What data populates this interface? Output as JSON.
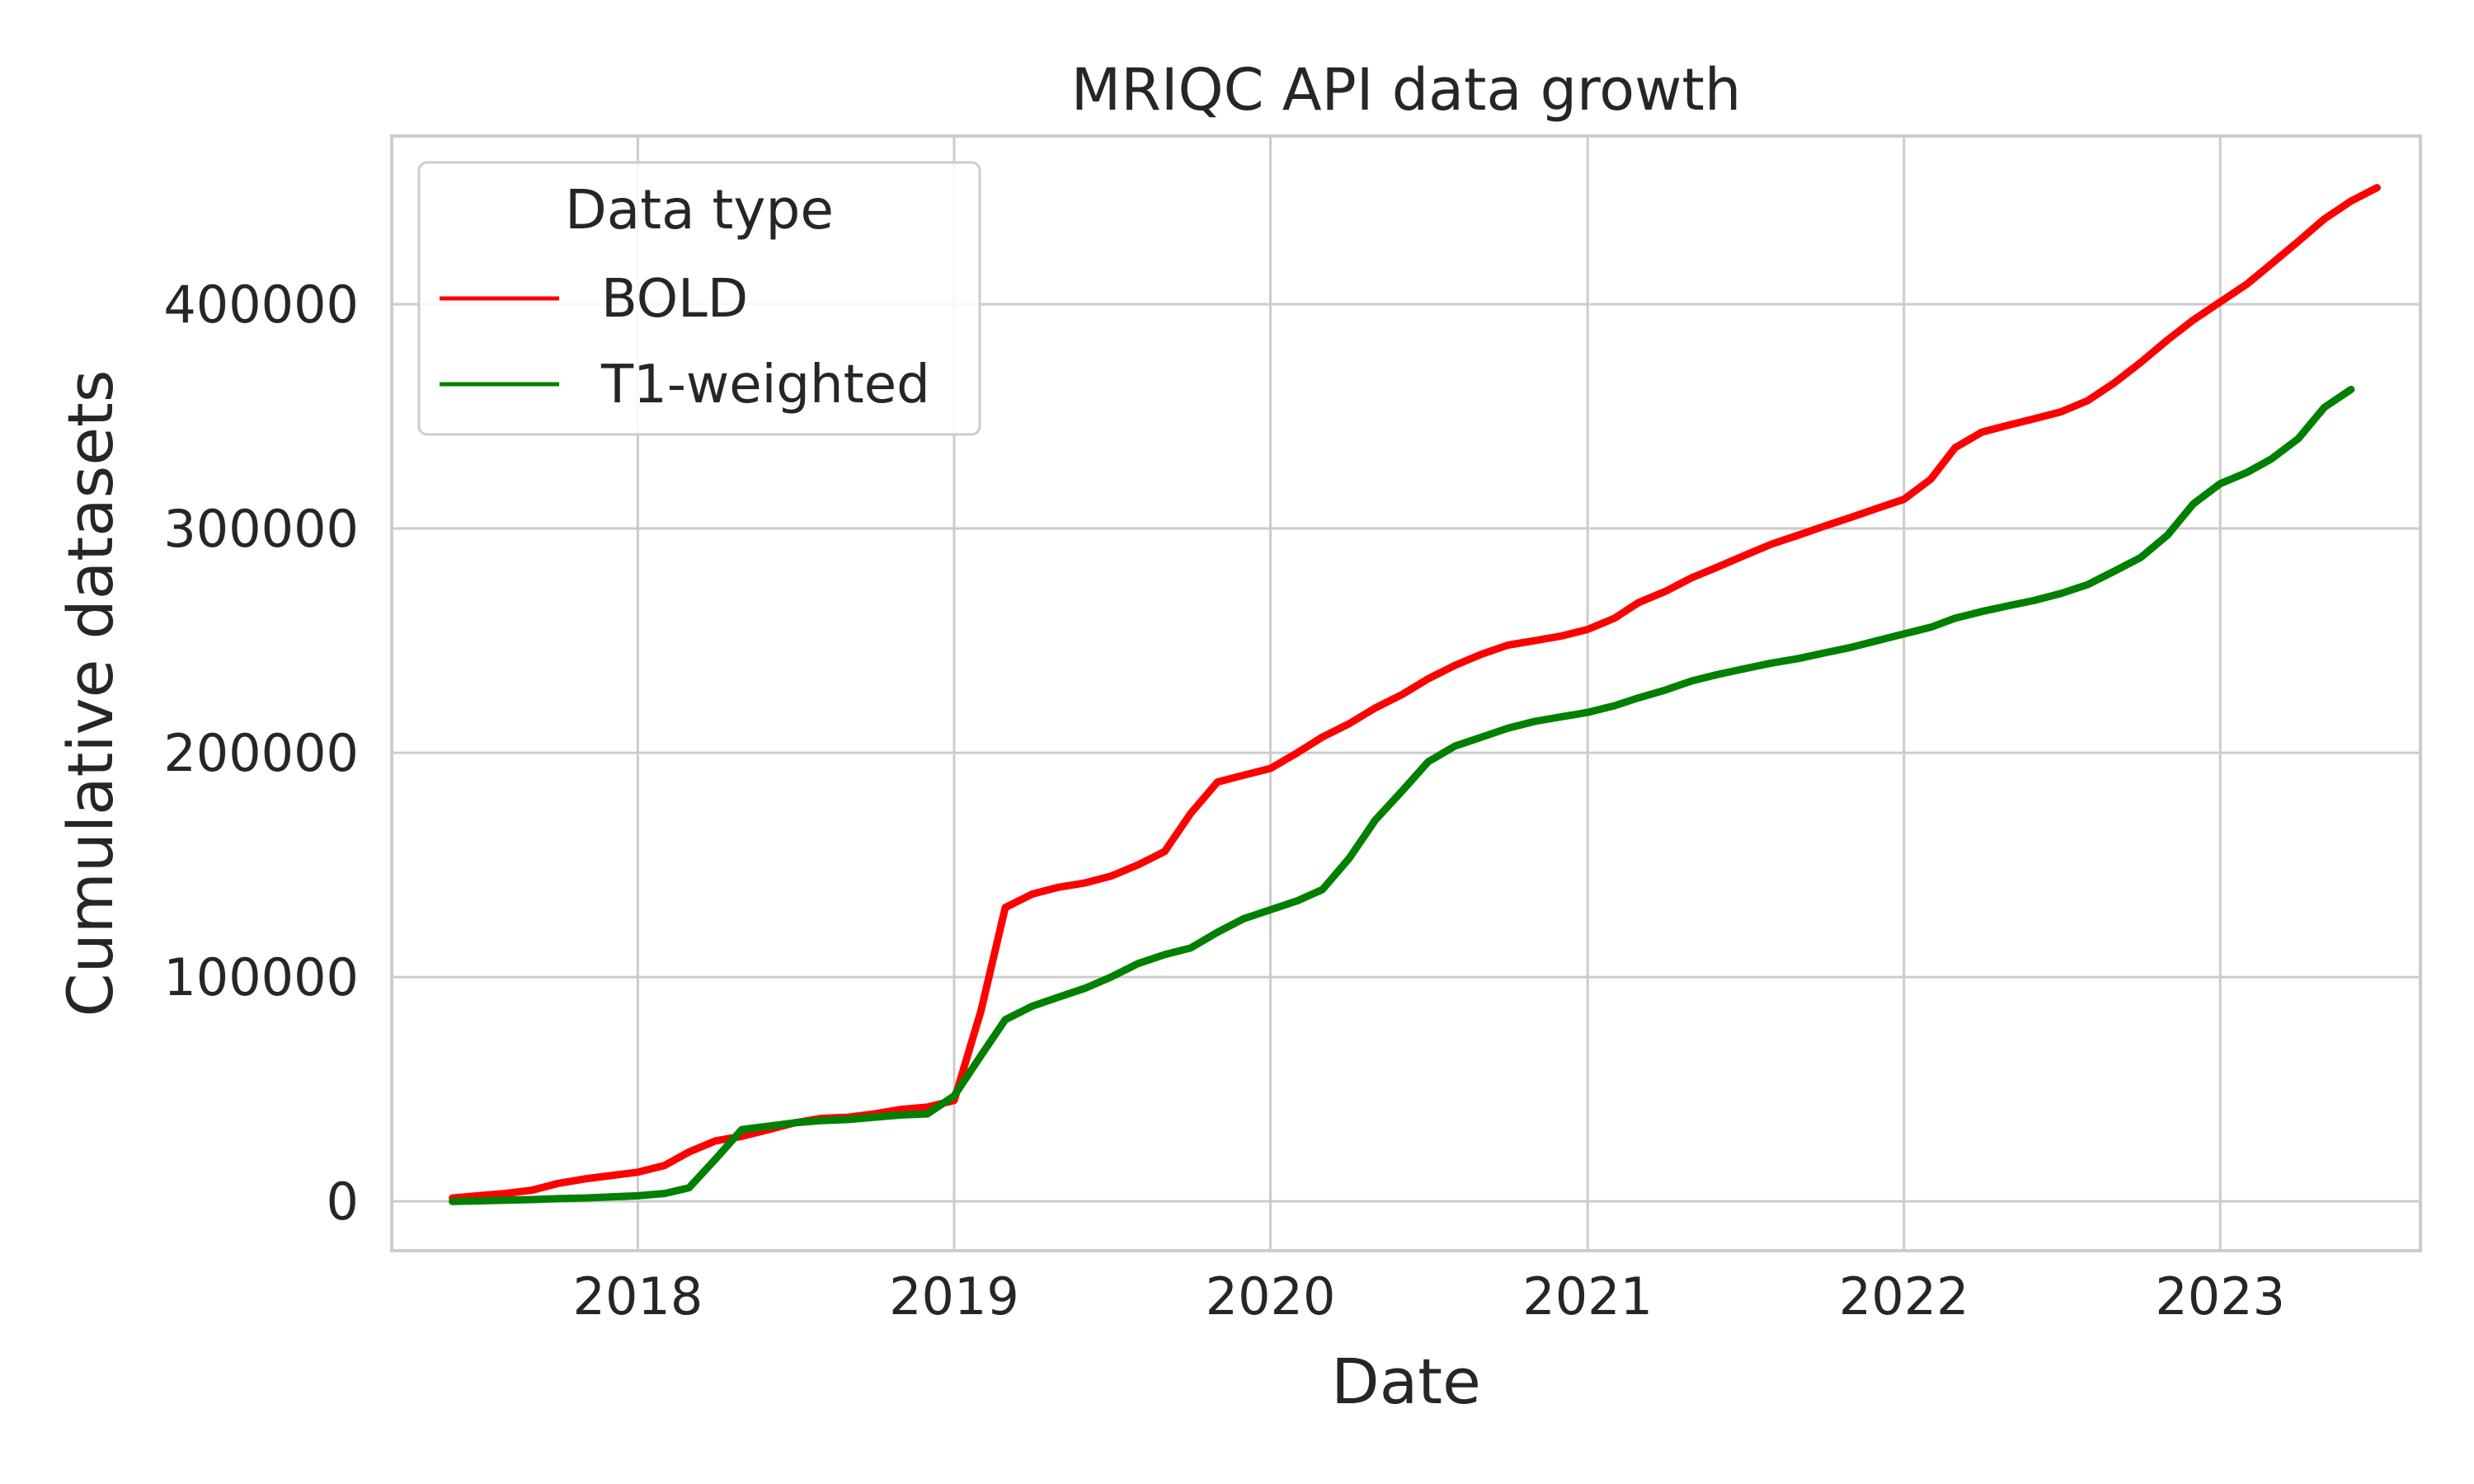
{
  "chart_data": {
    "type": "line",
    "title": "MRIQC API data growth",
    "xlabel": "Date",
    "ylabel": "Cumulative datasets",
    "x_ticks": [
      "2018",
      "2019",
      "2020",
      "2021",
      "2022",
      "2023"
    ],
    "x_tick_values": [
      "2018-01-01",
      "2019-01-01",
      "2020-01-01",
      "2021-01-01",
      "2022-01-01",
      "2023-01-01"
    ],
    "y_ticks": [
      0,
      100000,
      200000,
      300000,
      400000
    ],
    "y_tick_labels": [
      "0",
      "100000",
      "200000",
      "300000",
      "400000"
    ],
    "xlim": [
      "2017-03-23",
      "2023-08-20"
    ],
    "ylim": [
      -22000,
      475000
    ],
    "grid": true,
    "legend": {
      "title": "Data type",
      "placement": "top-left"
    },
    "series": [
      {
        "name": "BOLD",
        "color": "#ff0000",
        "points": [
          [
            "2017-06-01",
            1500
          ],
          [
            "2017-07-01",
            2500
          ],
          [
            "2017-08-01",
            3500
          ],
          [
            "2017-09-01",
            5000
          ],
          [
            "2017-10-01",
            8000
          ],
          [
            "2017-11-01",
            10000
          ],
          [
            "2017-12-01",
            11500
          ],
          [
            "2018-01-01",
            13000
          ],
          [
            "2018-02-01",
            16000
          ],
          [
            "2018-03-01",
            22000
          ],
          [
            "2018-04-01",
            27000
          ],
          [
            "2018-05-01",
            29000
          ],
          [
            "2018-06-01",
            32000
          ],
          [
            "2018-07-01",
            35000
          ],
          [
            "2018-08-01",
            37000
          ],
          [
            "2018-09-01",
            37500
          ],
          [
            "2018-10-01",
            39000
          ],
          [
            "2018-11-01",
            41000
          ],
          [
            "2018-12-01",
            42000
          ],
          [
            "2019-01-01",
            45000
          ],
          [
            "2019-02-01",
            85000
          ],
          [
            "2019-03-01",
            131000
          ],
          [
            "2019-04-01",
            137000
          ],
          [
            "2019-05-01",
            140000
          ],
          [
            "2019-06-01",
            142000
          ],
          [
            "2019-07-01",
            145000
          ],
          [
            "2019-08-01",
            150000
          ],
          [
            "2019-09-01",
            156000
          ],
          [
            "2019-10-01",
            173000
          ],
          [
            "2019-11-01",
            187000
          ],
          [
            "2019-12-01",
            190000
          ],
          [
            "2020-01-01",
            193000
          ],
          [
            "2020-02-01",
            200000
          ],
          [
            "2020-03-01",
            207000
          ],
          [
            "2020-04-01",
            213000
          ],
          [
            "2020-05-01",
            220000
          ],
          [
            "2020-06-01",
            226000
          ],
          [
            "2020-07-01",
            233000
          ],
          [
            "2020-08-01",
            239000
          ],
          [
            "2020-09-01",
            244000
          ],
          [
            "2020-10-01",
            248000
          ],
          [
            "2020-11-01",
            250000
          ],
          [
            "2020-12-01",
            252000
          ],
          [
            "2021-01-01",
            255000
          ],
          [
            "2021-02-01",
            260000
          ],
          [
            "2021-03-01",
            267000
          ],
          [
            "2021-04-01",
            272000
          ],
          [
            "2021-05-01",
            278000
          ],
          [
            "2021-06-01",
            283000
          ],
          [
            "2021-07-01",
            288000
          ],
          [
            "2021-08-01",
            293000
          ],
          [
            "2021-09-01",
            297000
          ],
          [
            "2021-10-01",
            301000
          ],
          [
            "2021-11-01",
            305000
          ],
          [
            "2021-12-01",
            309000
          ],
          [
            "2022-01-01",
            313000
          ],
          [
            "2022-02-01",
            322000
          ],
          [
            "2022-03-01",
            336000
          ],
          [
            "2022-04-01",
            343000
          ],
          [
            "2022-05-01",
            346000
          ],
          [
            "2022-06-01",
            349000
          ],
          [
            "2022-07-01",
            352000
          ],
          [
            "2022-08-01",
            357000
          ],
          [
            "2022-09-01",
            365000
          ],
          [
            "2022-10-01",
            374000
          ],
          [
            "2022-11-01",
            384000
          ],
          [
            "2022-12-01",
            393000
          ],
          [
            "2023-01-01",
            401000
          ],
          [
            "2023-02-01",
            409000
          ],
          [
            "2023-03-01",
            418000
          ],
          [
            "2023-04-01",
            428000
          ],
          [
            "2023-05-01",
            438000
          ],
          [
            "2023-06-01",
            446000
          ],
          [
            "2023-07-01",
            452000
          ]
        ]
      },
      {
        "name": "T1-weighted",
        "color": "#008000",
        "points": [
          [
            "2017-06-01",
            0
          ],
          [
            "2017-07-01",
            200
          ],
          [
            "2017-08-01",
            500
          ],
          [
            "2017-09-01",
            800
          ],
          [
            "2017-10-01",
            1200
          ],
          [
            "2017-11-01",
            1500
          ],
          [
            "2017-12-01",
            2000
          ],
          [
            "2018-01-01",
            2500
          ],
          [
            "2018-02-01",
            3500
          ],
          [
            "2018-03-01",
            6000
          ],
          [
            "2018-04-01",
            19000
          ],
          [
            "2018-05-01",
            32000
          ],
          [
            "2018-06-01",
            33500
          ],
          [
            "2018-07-01",
            35000
          ],
          [
            "2018-08-01",
            36000
          ],
          [
            "2018-09-01",
            36500
          ],
          [
            "2018-10-01",
            37500
          ],
          [
            "2018-11-01",
            38500
          ],
          [
            "2018-12-01",
            39000
          ],
          [
            "2019-01-01",
            47000
          ],
          [
            "2019-02-01",
            65000
          ],
          [
            "2019-03-01",
            81000
          ],
          [
            "2019-04-01",
            87000
          ],
          [
            "2019-05-01",
            91000
          ],
          [
            "2019-06-01",
            95000
          ],
          [
            "2019-07-01",
            100000
          ],
          [
            "2019-08-01",
            106000
          ],
          [
            "2019-09-01",
            110000
          ],
          [
            "2019-10-01",
            113000
          ],
          [
            "2019-11-01",
            120000
          ],
          [
            "2019-12-01",
            126000
          ],
          [
            "2020-01-01",
            130000
          ],
          [
            "2020-02-01",
            134000
          ],
          [
            "2020-03-01",
            139000
          ],
          [
            "2020-04-01",
            153000
          ],
          [
            "2020-05-01",
            170000
          ],
          [
            "2020-06-01",
            183000
          ],
          [
            "2020-07-01",
            196000
          ],
          [
            "2020-08-01",
            203000
          ],
          [
            "2020-09-01",
            207000
          ],
          [
            "2020-10-01",
            211000
          ],
          [
            "2020-11-01",
            214000
          ],
          [
            "2020-12-01",
            216000
          ],
          [
            "2021-01-01",
            218000
          ],
          [
            "2021-02-01",
            221000
          ],
          [
            "2021-03-01",
            224500
          ],
          [
            "2021-04-01",
            228000
          ],
          [
            "2021-05-01",
            232000
          ],
          [
            "2021-06-01",
            235000
          ],
          [
            "2021-07-01",
            237500
          ],
          [
            "2021-08-01",
            240000
          ],
          [
            "2021-09-01",
            242000
          ],
          [
            "2021-10-01",
            244500
          ],
          [
            "2021-11-01",
            247000
          ],
          [
            "2021-12-01",
            250000
          ],
          [
            "2022-01-01",
            253000
          ],
          [
            "2022-02-01",
            256000
          ],
          [
            "2022-03-01",
            260000
          ],
          [
            "2022-04-01",
            263000
          ],
          [
            "2022-05-01",
            265500
          ],
          [
            "2022-06-01",
            268000
          ],
          [
            "2022-07-01",
            271000
          ],
          [
            "2022-08-01",
            275000
          ],
          [
            "2022-09-01",
            281000
          ],
          [
            "2022-10-01",
            287000
          ],
          [
            "2022-11-01",
            297000
          ],
          [
            "2022-12-01",
            311000
          ],
          [
            "2023-01-01",
            320000
          ],
          [
            "2023-02-01",
            325000
          ],
          [
            "2023-03-01",
            331000
          ],
          [
            "2023-04-01",
            340000
          ],
          [
            "2023-05-01",
            354000
          ],
          [
            "2023-06-01",
            362000
          ]
        ]
      }
    ]
  }
}
